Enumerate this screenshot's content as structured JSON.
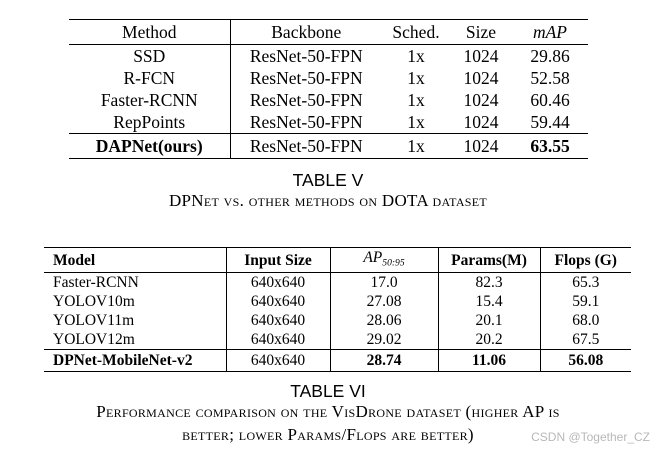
{
  "table5": {
    "headers": [
      "Method",
      "Backbone",
      "Sched.",
      "Size",
      "mAP"
    ],
    "rows": [
      [
        "SSD",
        "ResNet-50-FPN",
        "1x",
        "1024",
        "29.86"
      ],
      [
        "R-FCN",
        "ResNet-50-FPN",
        "1x",
        "1024",
        "52.58"
      ],
      [
        "Faster-RCNN",
        "ResNet-50-FPN",
        "1x",
        "1024",
        "60.46"
      ],
      [
        "RepPoints",
        "ResNet-50-FPN",
        "1x",
        "1024",
        "59.44"
      ],
      [
        "DAPNet(ours)",
        "ResNet-50-FPN",
        "1x",
        "1024",
        "63.55"
      ]
    ],
    "label": "TABLE V",
    "caption": "DPNet vs. other methods on DOTA dataset"
  },
  "table6": {
    "headers": [
      "Model",
      "Input Size",
      "AP",
      "Params(M)",
      "Flops (G)"
    ],
    "ap_subscript": "50:95",
    "rows": [
      [
        "Faster-RCNN",
        "640x640",
        "17.0",
        "82.3",
        "65.3"
      ],
      [
        "YOLOV10m",
        "640x640",
        "27.08",
        "15.4",
        "59.1"
      ],
      [
        "YOLOV11m",
        "640x640",
        "28.06",
        "20.1",
        "68.0"
      ],
      [
        "YOLOV12m",
        "640x640",
        "29.02",
        "20.2",
        "67.5"
      ],
      [
        "DPNet-MobileNet-v2",
        "640x640",
        "28.74",
        "11.06",
        "56.08"
      ]
    ],
    "label": "TABLE VI",
    "caption_line1": "Performance comparison on the VisDrone dataset (higher AP is",
    "caption_line2": "better; lower Params/Flops are better)"
  },
  "watermark": "CSDN @Together_CZ"
}
